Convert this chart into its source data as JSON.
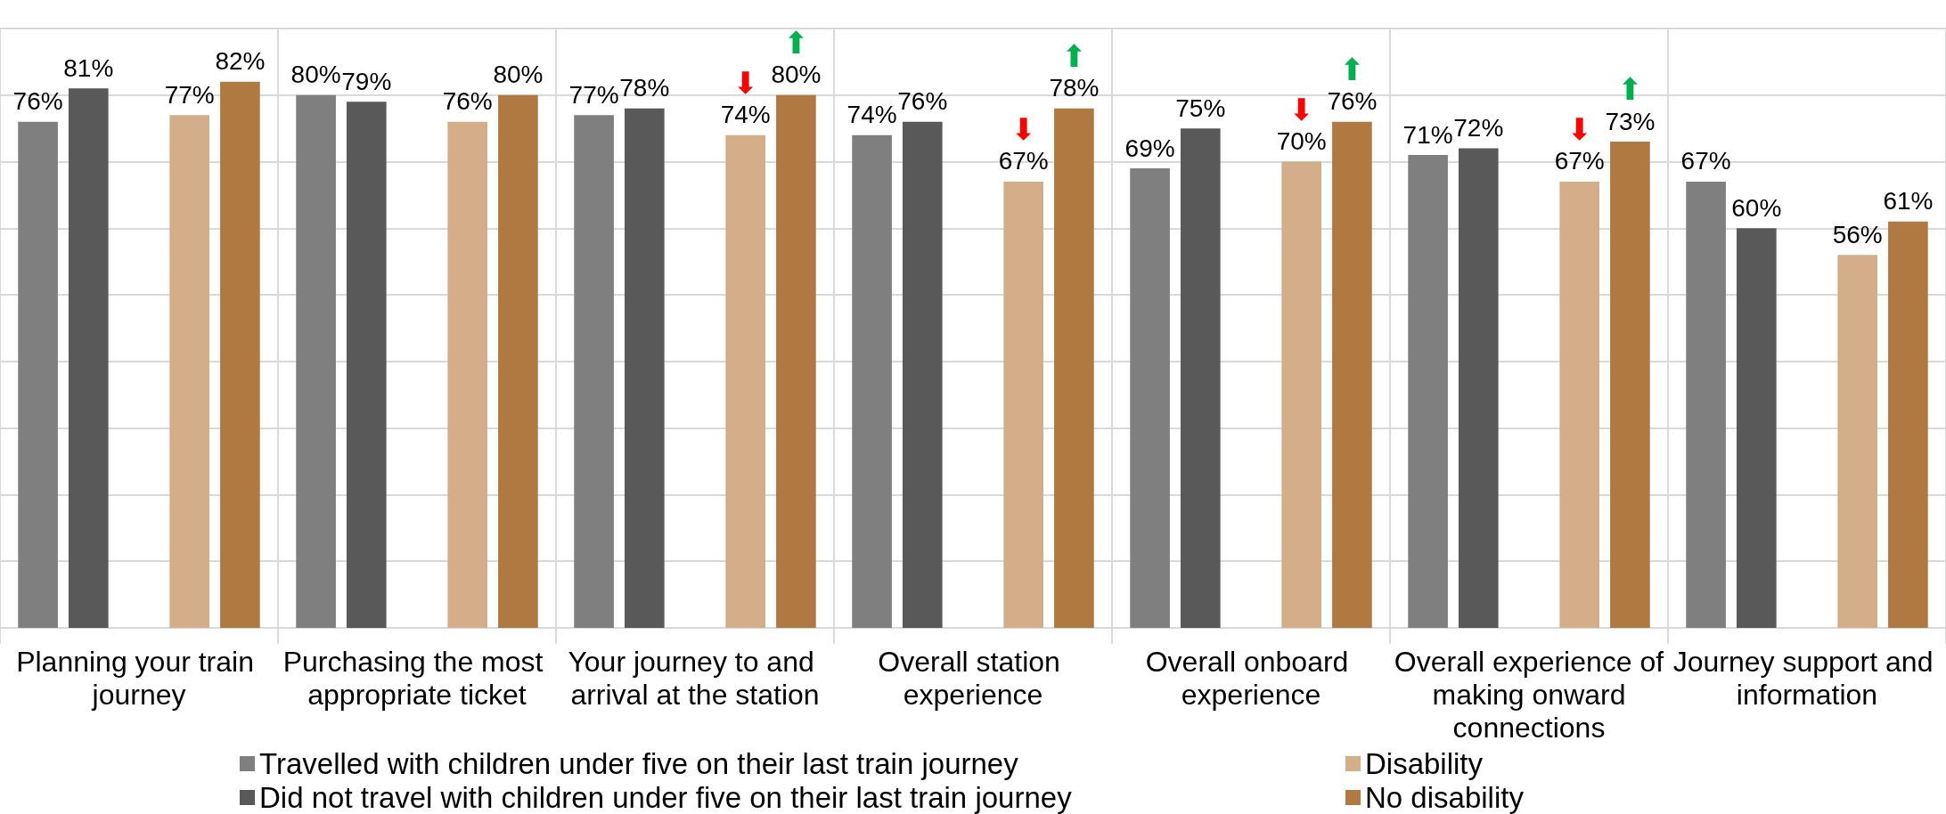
{
  "chart_data": {
    "type": "bar",
    "categories": [
      "Planning your train journey",
      "Purchasing the most appropriate ticket",
      "Your journey to and arrival at the station",
      "Overall station experience",
      "Overall onboard experience",
      "Overall experience of making onward connections",
      "Journey support and information"
    ],
    "series": [
      {
        "name": "Travelled with children under five on their last train journey",
        "color": "#7f7f7f",
        "values": [
          76,
          80,
          77,
          74,
          69,
          71,
          67
        ],
        "value_labels": [
          "76%",
          "80%",
          "77%",
          "74%",
          "69%",
          "71%",
          "67%"
        ]
      },
      {
        "name": "Did not travel with children under five on their last train journey",
        "color": "#595959",
        "values": [
          81,
          79,
          78,
          76,
          75,
          72,
          60
        ],
        "value_labels": [
          "81%",
          "79%",
          "78%",
          "76%",
          "75%",
          "72%",
          "60%"
        ]
      },
      {
        "name": "Disability",
        "color": "#d3ae88",
        "values": [
          77,
          76,
          74,
          67,
          70,
          67,
          56
        ],
        "value_labels": [
          "77%",
          "76%",
          "⬇\n74%",
          "⬇\n67%",
          "⬇\n70%",
          "⬇\n67%",
          "56%"
        ]
      },
      {
        "name": "No disability",
        "color": "#b07941",
        "values": [
          82,
          80,
          80,
          78,
          76,
          73,
          61
        ],
        "value_labels": [
          "82%",
          "80%",
          "⬆\n80%",
          "⬆\n78%",
          "⬆\n76%",
          "⬆\n73%",
          "61%"
        ]
      }
    ],
    "ylim": [
      0,
      90
    ],
    "yticks": [
      {
        "value": 0,
        "label": null
      },
      {
        "value": 10,
        "label": null
      },
      {
        "value": 20,
        "label": null
      },
      {
        "value": 30,
        "label": null
      },
      {
        "value": 40,
        "label": null
      },
      {
        "value": 50,
        "label": null
      },
      {
        "value": 60,
        "label": null
      },
      {
        "value": 70,
        "label": null
      },
      {
        "value": 80,
        "label": null
      },
      {
        "value": 90,
        "label": null
      }
    ],
    "tick_labels": "x",
    "grid": true,
    "legend": "bottom"
  }
}
